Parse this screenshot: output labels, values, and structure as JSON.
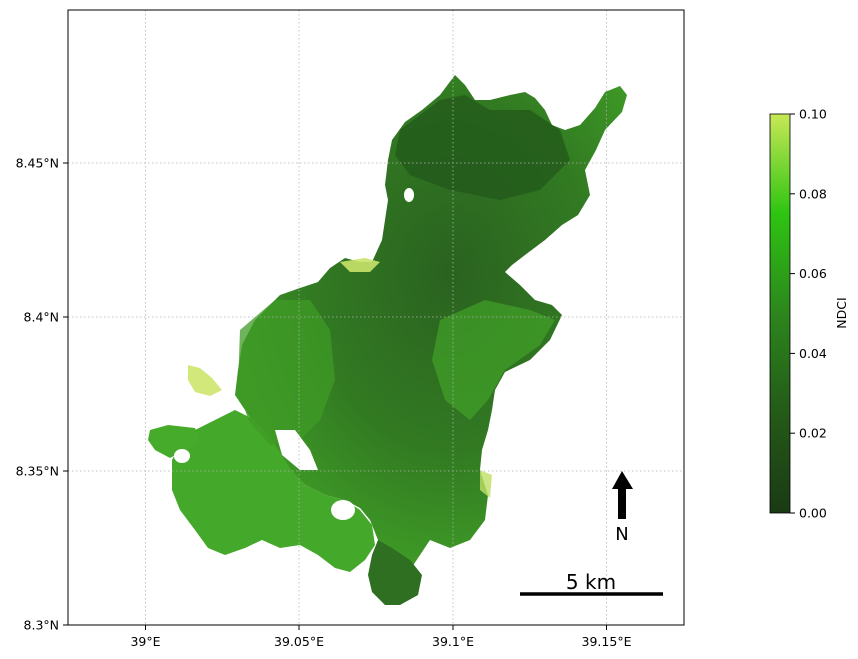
{
  "map": {
    "x_ticks": [
      "39°E",
      "39.05°E",
      "39.1°E",
      "39.15°E"
    ],
    "y_ticks": [
      "8.45°N",
      "8.4°N",
      "8.35°N",
      "8.3°N"
    ],
    "grid": "dotted",
    "north_label": "N",
    "scale_bar_label": "5 km"
  },
  "colorbar": {
    "label": "NDCI",
    "ticks": [
      "0.00",
      "0.02",
      "0.04",
      "0.06",
      "0.08",
      "0.10"
    ],
    "range": [
      0.0,
      0.1
    ],
    "colors": [
      "#1a3a14",
      "#2a6a1c",
      "#2f8f1f",
      "#33c414",
      "#c8e857"
    ]
  },
  "legend_colors": {
    "water_dark": "#285a1e",
    "water_mid": "#3a8f24",
    "water_bright": "#49b22a",
    "bloom": "#d2e87a"
  }
}
